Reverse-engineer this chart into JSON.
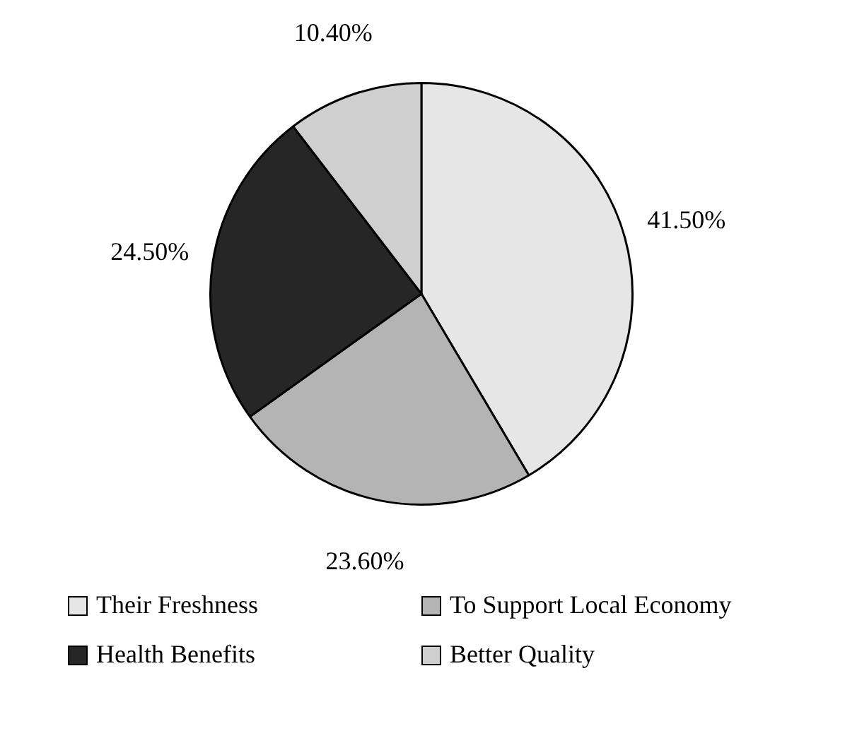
{
  "chart_data": {
    "type": "pie",
    "categories": [
      "Their Freshness",
      "To Support Local Economy",
      "Health Benefits",
      "Better Quality"
    ],
    "values": [
      41.5,
      23.6,
      24.5,
      10.4
    ],
    "colors": [
      "#e6e6e6",
      "#b4b4b4",
      "#262626",
      "#cfcfcf"
    ],
    "value_labels": [
      "41.50%",
      "23.60%",
      "24.50%",
      "10.40%"
    ],
    "legend": "bottom"
  }
}
